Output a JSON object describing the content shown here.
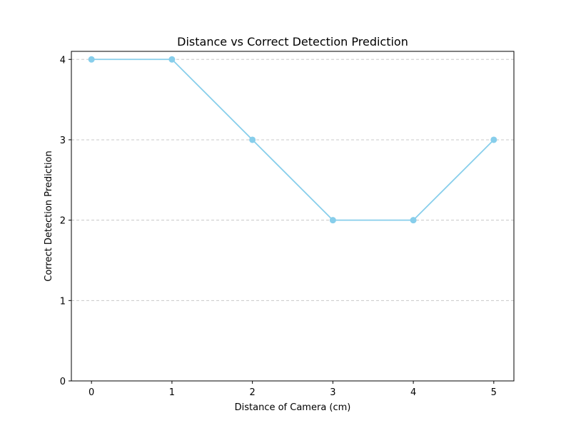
{
  "chart_data": {
    "type": "line",
    "title": "Distance vs Correct Detection Prediction",
    "xlabel": "Distance of Camera (cm)",
    "ylabel": "Correct Detection Prediction",
    "x": [
      0,
      1,
      2,
      3,
      4,
      5
    ],
    "series": [
      {
        "values": [
          4,
          4,
          3,
          2,
          2,
          3
        ]
      }
    ],
    "xticks": [
      "0",
      "1",
      "2",
      "3",
      "4",
      "5"
    ],
    "yticks": [
      "0",
      "1",
      "2",
      "3",
      "4"
    ],
    "xlim": [
      -0.25,
      5.25
    ],
    "ylim": [
      0,
      4.1
    ],
    "grid": "y-dashed",
    "markers": "circle",
    "line_color": "#87CEEB",
    "grid_color": "#C8C8C8"
  }
}
